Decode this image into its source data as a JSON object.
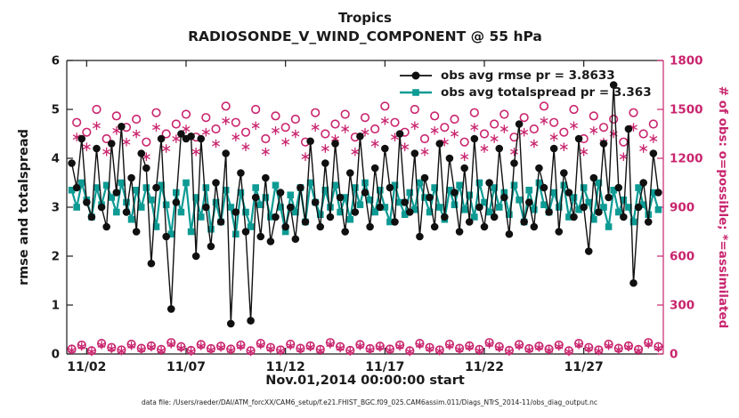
{
  "caption": "data file: /Users/raeder/DAI/ATM_forcXX/CAM6_setup/f.e21.FHIST_BGC.f09_025.CAM6assim.011/Diags_NTrS_2014-11/obs_diag_output.nc",
  "chart_data": {
    "type": "line",
    "title": "Tropics",
    "subtitle": "RADIOSONDE_V_WIND_COMPONENT @ 55 hPa",
    "xlabel": "Nov.01,2014 00:00:00 start",
    "ylabel_left": "rmse and totalspread",
    "ylabel_right": "# of obs: o=possible; *=assimilated",
    "axis_color_left": "#1a1a1a",
    "axis_color_right": "#C9256E",
    "ylim_left": [
      0,
      6
    ],
    "ylim_right": [
      0,
      1800
    ],
    "yticks_left": [
      0,
      1,
      2,
      3,
      4,
      5,
      6
    ],
    "yticks_right": [
      0,
      300,
      600,
      900,
      1200,
      1500,
      1800
    ],
    "xlim_days": [
      0,
      30
    ],
    "xticks": [
      {
        "day": 1,
        "label": "11/02"
      },
      {
        "day": 6,
        "label": "11/07"
      },
      {
        "day": 11,
        "label": "11/12"
      },
      {
        "day": 16,
        "label": "11/17"
      },
      {
        "day": 21,
        "label": "11/22"
      },
      {
        "day": 26,
        "label": "11/27"
      }
    ],
    "x_start_day": 0.25,
    "x_step_day": 0.25,
    "legend_position": "top-right-inside",
    "grid": false,
    "series": [
      {
        "name": "obs avg rmse pr = 3.8633",
        "axis": "left",
        "color": "#101010",
        "marker": "filled-circle",
        "line": true,
        "line_width": 1.4,
        "marker_size": 4.3,
        "values": [
          3.9,
          3.4,
          4.4,
          3.1,
          2.8,
          4.2,
          3.0,
          2.6,
          4.3,
          3.3,
          4.65,
          2.9,
          3.6,
          2.5,
          4.1,
          3.8,
          1.85,
          3.4,
          4.4,
          2.4,
          0.92,
          3.1,
          4.5,
          4.4,
          4.45,
          2.0,
          4.4,
          3.0,
          2.2,
          3.5,
          2.7,
          4.1,
          0.62,
          2.9,
          3.7,
          2.5,
          0.68,
          3.2,
          2.4,
          3.6,
          2.3,
          2.8,
          3.3,
          2.6,
          3.0,
          2.35,
          3.4,
          2.7,
          4.35,
          3.1,
          2.6,
          3.9,
          2.8,
          4.3,
          3.2,
          2.5,
          3.7,
          2.9,
          4.45,
          3.3,
          2.6,
          3.8,
          3.0,
          4.2,
          3.4,
          2.7,
          4.5,
          3.1,
          2.9,
          4.1,
          2.4,
          3.6,
          3.2,
          2.6,
          4.3,
          2.8,
          4.0,
          3.3,
          2.5,
          3.8,
          2.7,
          4.4,
          3.0,
          2.6,
          3.5,
          2.8,
          4.2,
          3.2,
          2.45,
          3.9,
          4.7,
          2.7,
          3.1,
          2.6,
          3.8,
          3.4,
          2.9,
          4.2,
          2.5,
          3.7,
          3.3,
          2.8,
          4.4,
          3.0,
          2.1,
          3.6,
          2.9,
          4.3,
          3.2,
          5.5,
          3.4,
          2.8,
          4.6,
          1.45,
          3.0,
          3.5,
          2.7,
          4.1,
          3.3
        ]
      },
      {
        "name": "obs avg totalspread pr = 3.363",
        "axis": "left",
        "color": "#0D9B94",
        "marker": "filled-square",
        "line": true,
        "line_width": 2.2,
        "marker_size": 7.6,
        "values": [
          3.35,
          3.0,
          3.5,
          3.15,
          2.8,
          3.4,
          3.05,
          3.45,
          3.2,
          2.9,
          3.5,
          3.1,
          2.75,
          3.35,
          3.0,
          3.4,
          3.15,
          2.6,
          3.45,
          3.05,
          2.45,
          3.3,
          2.9,
          3.5,
          2.5,
          3.2,
          2.8,
          3.4,
          2.55,
          3.1,
          2.7,
          3.35,
          3.0,
          2.45,
          3.3,
          2.9,
          2.6,
          3.4,
          3.05,
          3.2,
          2.8,
          3.45,
          3.0,
          2.5,
          3.25,
          2.9,
          3.4,
          2.7,
          3.5,
          3.1,
          2.85,
          3.35,
          3.0,
          3.45,
          2.9,
          3.2,
          2.75,
          3.4,
          3.05,
          3.5,
          3.15,
          2.9,
          3.35,
          3.0,
          2.7,
          3.45,
          3.1,
          2.85,
          3.3,
          2.95,
          3.5,
          3.2,
          2.9,
          3.4,
          3.0,
          2.75,
          3.35,
          3.05,
          3.45,
          2.95,
          3.25,
          2.8,
          3.5,
          3.1,
          2.9,
          3.4,
          3.0,
          3.3,
          2.85,
          3.45,
          3.15,
          2.7,
          3.35,
          2.95,
          3.5,
          3.05,
          2.9,
          3.3,
          3.0,
          3.45,
          2.8,
          3.2,
          2.95,
          3.4,
          3.1,
          2.75,
          3.5,
          3.0,
          2.6,
          3.35,
          2.9,
          3.15,
          3.0,
          2.7,
          3.4,
          3.05,
          2.85,
          3.3,
          2.95
        ]
      },
      {
        "name": "# of obs possible",
        "axis": "right",
        "color": "#C9256E",
        "marker": "open-circle",
        "line": false,
        "line_width": 0,
        "marker_size": 4.3,
        "values": [
          30,
          1420,
          55,
          1360,
          20,
          1500,
          65,
          1320,
          40,
          1460,
          25,
          1390,
          60,
          1440,
          35,
          1300,
          50,
          1480,
          28,
          1350,
          70,
          1410,
          45,
          1470,
          22,
          1330,
          58,
          1450,
          33,
          1380,
          48,
          1520,
          30,
          1420,
          55,
          1360,
          20,
          1500,
          65,
          1320,
          40,
          1460,
          25,
          1390,
          60,
          1440,
          35,
          1300,
          50,
          1480,
          28,
          1350,
          70,
          1410,
          45,
          1470,
          22,
          1330,
          58,
          1450,
          33,
          1380,
          48,
          1520,
          30,
          1420,
          55,
          1360,
          20,
          1500,
          65,
          1320,
          40,
          1460,
          25,
          1390,
          60,
          1440,
          35,
          1300,
          50,
          1480,
          28,
          1350,
          70,
          1410,
          45,
          1470,
          22,
          1330,
          58,
          1450,
          33,
          1380,
          48,
          1520,
          30,
          1420,
          55,
          1360,
          20,
          1500,
          65,
          1320,
          40,
          1460,
          25,
          1390,
          60,
          1440,
          35,
          1300,
          50,
          1480,
          28,
          1350,
          70,
          1410,
          45
        ]
      },
      {
        "name": "# of obs assimilated",
        "axis": "right",
        "color": "#C9256E",
        "marker": "asterisk",
        "line": false,
        "line_width": 0,
        "marker_size": 4.8,
        "values": [
          22,
          1330,
          46,
          1270,
          14,
          1400,
          55,
          1240,
          32,
          1370,
          18,
          1300,
          50,
          1350,
          27,
          1210,
          42,
          1390,
          20,
          1260,
          60,
          1320,
          36,
          1380,
          15,
          1240,
          49,
          1360,
          25,
          1290,
          40,
          1430,
          22,
          1330,
          46,
          1270,
          14,
          1400,
          55,
          1240,
          32,
          1370,
          18,
          1300,
          50,
          1350,
          27,
          1210,
          42,
          1390,
          20,
          1260,
          60,
          1320,
          36,
          1380,
          15,
          1240,
          49,
          1360,
          25,
          1290,
          40,
          1430,
          22,
          1330,
          46,
          1270,
          14,
          1400,
          55,
          1240,
          32,
          1370,
          18,
          1300,
          50,
          1350,
          27,
          1210,
          42,
          1390,
          20,
          1260,
          60,
          1320,
          36,
          1380,
          15,
          1240,
          49,
          1360,
          25,
          1290,
          40,
          1430,
          22,
          1330,
          46,
          1270,
          14,
          1400,
          55,
          1240,
          32,
          1370,
          18,
          1300,
          50,
          1350,
          27,
          1210,
          42,
          1390,
          20,
          1260,
          60,
          1320,
          36
        ]
      }
    ]
  }
}
